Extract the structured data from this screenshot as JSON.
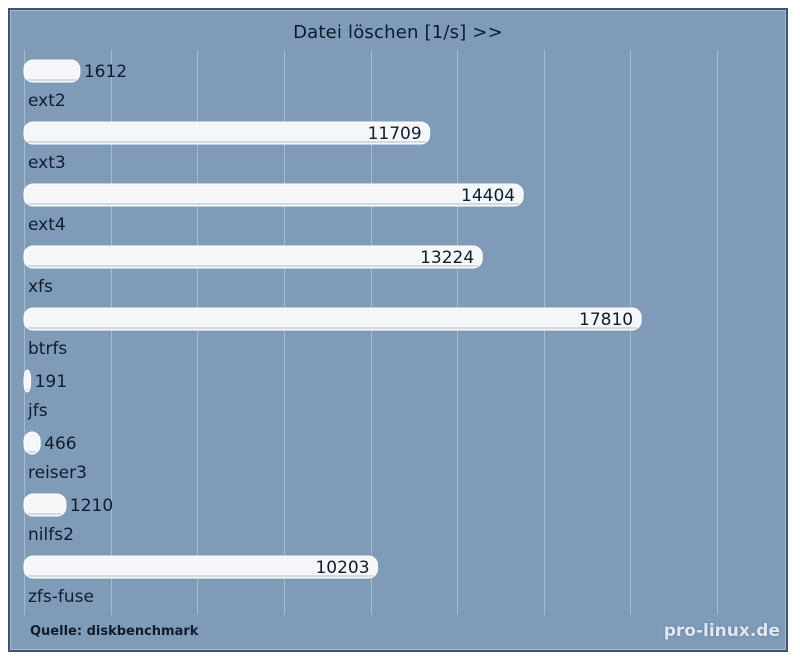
{
  "colors": {
    "background": "#7f9bb8",
    "bar": "#f4f6f8",
    "gridline": "#c9d6e4"
  },
  "chart_data": {
    "type": "bar",
    "orientation": "horizontal",
    "title": "Datei löschen [1/s] >>",
    "categories": [
      "ext2",
      "ext3",
      "ext4",
      "xfs",
      "btrfs",
      "jfs",
      "reiser3",
      "nilfs2",
      "zfs-fuse"
    ],
    "values": [
      1612,
      11709,
      14404,
      13224,
      17810,
      191,
      466,
      1210,
      10203
    ],
    "xlim": [
      0,
      20000
    ],
    "grid": true,
    "source": "Quelle: diskbenchmark",
    "watermark": "pro-linux.de"
  }
}
